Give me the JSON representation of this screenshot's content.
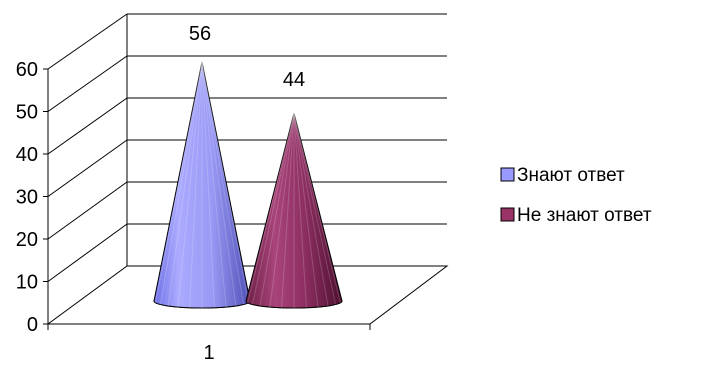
{
  "chart_data": {
    "type": "bar",
    "style": "3d-cone",
    "categories": [
      "1"
    ],
    "series": [
      {
        "name": "Знают ответ",
        "values": [
          56
        ],
        "color": "#9999ff"
      },
      {
        "name": "Не знают ответ",
        "values": [
          44
        ],
        "color": "#993366"
      }
    ],
    "data_labels": [
      "56",
      "44"
    ],
    "ylim": [
      0,
      60
    ],
    "yticks": [
      0,
      10,
      20,
      30,
      40,
      50,
      60
    ],
    "grid": true,
    "legend_position": "right"
  }
}
